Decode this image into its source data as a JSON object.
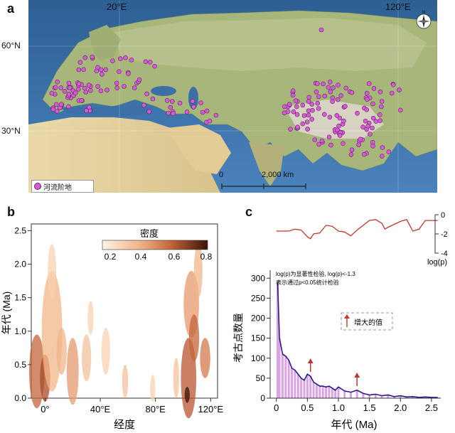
{
  "panel_a": {
    "letter": "a",
    "lon_labels": [
      "20°E",
      "120°E"
    ],
    "lat_labels": [
      "60°N",
      "30°N"
    ],
    "scale_start": "0",
    "scale_end": "2,000 km",
    "legend_label": "河流阶地",
    "colors": {
      "point": "#d95ad8",
      "sea": "#3a6ea5",
      "land": "#c9b98a"
    },
    "icons": [
      "compass-icon"
    ]
  },
  "panel_b": {
    "letter": "b",
    "colorbar_title": "密度",
    "colorbar_ticks": [
      "0.2",
      "0.4",
      "0.6",
      "0.8"
    ]
  },
  "panel_c": {
    "letter": "c",
    "logp_label": "log(p)",
    "note_line1": "log(p)为显著性检验, log(p)<-1.3",
    "note_line2": "表示通过p<0.05统计检验",
    "legend_label": "增大的值"
  },
  "chart_data": [
    {
      "type": "heatmap",
      "panel": "b",
      "xlabel": "经度",
      "ylabel": "年代 (Ma)",
      "x_ticks": [
        "0°",
        "40°E",
        "80°E",
        "120°E"
      ],
      "x_tick_values": [
        0,
        40,
        80,
        120
      ],
      "y_ticks": [
        "0.0",
        "0.5",
        "1.0",
        "1.5",
        "2.0",
        "2.5"
      ],
      "y_tick_values": [
        0,
        0.5,
        1.0,
        1.5,
        2.0,
        2.5
      ],
      "xlim": [
        -10,
        125
      ],
      "ylim": [
        0,
        2.6
      ],
      "colorbar_range": [
        0.1,
        0.8
      ]
    },
    {
      "type": "area",
      "panel": "c",
      "xlabel": "年代 (Ma)",
      "ylabel": "考古点数量",
      "x_ticks": [
        "0",
        "0.5",
        "1.0",
        "1.5",
        "2.0",
        "2.5"
      ],
      "x_tick_values": [
        0,
        0.5,
        1.0,
        1.5,
        2.0,
        2.5
      ],
      "y_ticks": [
        "0",
        "50",
        "100",
        "150",
        "200",
        "250",
        "300"
      ],
      "y_tick_values": [
        0,
        50,
        100,
        150,
        200,
        250,
        300
      ],
      "xlim": [
        -0.1,
        2.65
      ],
      "ylim": [
        0,
        320
      ],
      "counts_x": [
        0.02,
        0.05,
        0.1,
        0.15,
        0.2,
        0.25,
        0.3,
        0.35,
        0.4,
        0.45,
        0.5,
        0.55,
        0.6,
        0.65,
        0.7,
        0.75,
        0.8,
        0.85,
        0.9,
        0.95,
        1.0,
        1.1,
        1.2,
        1.3,
        1.4,
        1.5,
        1.6,
        1.7,
        1.8,
        1.9,
        2.0,
        2.1,
        2.2,
        2.3,
        2.4,
        2.5,
        2.6
      ],
      "counts_y": [
        290,
        150,
        110,
        105,
        95,
        75,
        70,
        60,
        50,
        45,
        60,
        55,
        40,
        35,
        30,
        30,
        28,
        30,
        25,
        20,
        28,
        18,
        15,
        20,
        12,
        8,
        10,
        6,
        8,
        4,
        6,
        3,
        4,
        2,
        3,
        2,
        2
      ],
      "logp_ticks": [
        "0",
        "-2",
        "-4"
      ],
      "logp_tick_values": [
        0,
        -2,
        -4
      ],
      "logp_ylim": [
        -4,
        0
      ],
      "logp_x": [
        0,
        0.1,
        0.2,
        0.3,
        0.4,
        0.5,
        0.55,
        0.6,
        0.7,
        0.8,
        0.9,
        1.0,
        1.1,
        1.2,
        1.3,
        1.4,
        1.5,
        1.6,
        1.7,
        1.75,
        1.8,
        1.9,
        2.0,
        2.1,
        2.2,
        2.3,
        2.4,
        2.5,
        2.6
      ],
      "logp_y": [
        -1.7,
        -1.7,
        -1.7,
        -1.5,
        -1.6,
        -2.3,
        -2.5,
        -2.0,
        -1.9,
        -1.1,
        -1.2,
        -1.7,
        -1.8,
        -2.2,
        -1.6,
        -1.1,
        -0.6,
        -0.5,
        -0.9,
        -1.5,
        -1.3,
        -1.0,
        -0.7,
        -0.5,
        -1.7,
        -1.5,
        -0.6,
        -0.6,
        -0.6
      ],
      "arrows_x": [
        0.55,
        1.3
      ]
    }
  ]
}
